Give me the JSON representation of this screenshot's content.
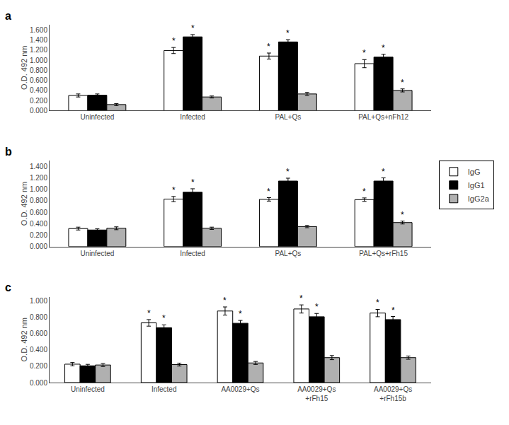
{
  "chart_data": [
    {
      "type": "bar",
      "title": "a",
      "ylabel": "O.D. 492 nm",
      "categories": [
        "Uninfected",
        "Infected",
        "PAL+Qs",
        "PAL+Qs+nFh12"
      ],
      "series": [
        {
          "name": "IgG",
          "color": "white",
          "values": [
            0.3,
            1.19,
            1.08,
            0.93
          ],
          "errors": [
            0.03,
            0.06,
            0.06,
            0.08
          ]
        },
        {
          "name": "IgG1",
          "color": "black",
          "values": [
            0.305,
            1.46,
            1.36,
            1.06
          ],
          "errors": [
            0.025,
            0.045,
            0.045,
            0.055
          ]
        },
        {
          "name": "IgG2a",
          "color": "#b0b0b0",
          "values": [
            0.12,
            0.27,
            0.33,
            0.4
          ],
          "errors": [
            0.02,
            0.02,
            0.03,
            0.03
          ]
        }
      ],
      "annotations": [
        {
          "category": "Infected",
          "series": "IgG",
          "text": "*"
        },
        {
          "category": "PAL+Qs",
          "series": "IgG",
          "text": "*"
        },
        {
          "category": "PAL+Qs+nFh12",
          "series": "IgG",
          "text": "*"
        },
        {
          "category": "Infected",
          "series": "IgG1",
          "text": "*"
        },
        {
          "category": "PAL+Qs",
          "series": "IgG1",
          "text": "*"
        },
        {
          "category": "PAL+Qs+nFh12",
          "series": "IgG1",
          "text": "*"
        },
        {
          "category": "PAL+Qs+nFh12",
          "series": "IgG2a",
          "text": "*"
        }
      ],
      "ylim": [
        0.0,
        1.7
      ],
      "yticks": [
        {
          "value": 0.0,
          "label": "0.000"
        },
        {
          "value": 0.2,
          "label": "0.200"
        },
        {
          "value": 0.4,
          "label": "0.400"
        },
        {
          "value": 0.6,
          "label": "0.600"
        },
        {
          "value": 0.8,
          "label": "0.800"
        },
        {
          "value": 1.0,
          "label": "1.000"
        },
        {
          "value": 1.2,
          "label": "1.200"
        },
        {
          "value": 1.4,
          "label": "1.400"
        },
        {
          "value": 1.6,
          "label": "1.600"
        }
      ],
      "grid": false
    },
    {
      "type": "bar",
      "title": "b",
      "ylabel": "O.D. 492 nm",
      "categories": [
        "Uninfected",
        "Infected",
        "PAL+Qs",
        "PAL+Qs+rFh15"
      ],
      "series": [
        {
          "name": "IgG",
          "color": "white",
          "values": [
            0.315,
            0.83,
            0.825,
            0.82
          ],
          "errors": [
            0.025,
            0.045,
            0.03,
            0.03
          ]
        },
        {
          "name": "IgG1",
          "color": "black",
          "values": [
            0.29,
            0.95,
            1.145,
            1.145
          ],
          "errors": [
            0.02,
            0.06,
            0.05,
            0.055
          ]
        },
        {
          "name": "IgG2a",
          "color": "#b0b0b0",
          "values": [
            0.32,
            0.32,
            0.35,
            0.42
          ],
          "errors": [
            0.025,
            0.02,
            0.02,
            0.025
          ]
        }
      ],
      "annotations": [
        {
          "category": "Infected",
          "series": "IgG",
          "text": "*"
        },
        {
          "category": "PAL+Qs",
          "series": "IgG",
          "text": "*"
        },
        {
          "category": "PAL+Qs+rFh15",
          "series": "IgG",
          "text": "*"
        },
        {
          "category": "Infected",
          "series": "IgG1",
          "text": "*"
        },
        {
          "category": "PAL+Qs",
          "series": "IgG1",
          "text": "*"
        },
        {
          "category": "PAL+Qs+rFh15",
          "series": "IgG1",
          "text": "*"
        },
        {
          "category": "PAL+Qs+rFh15",
          "series": "IgG2a",
          "text": "*"
        }
      ],
      "ylim": [
        0.0,
        1.5
      ],
      "yticks": [
        {
          "value": 0.0,
          "label": "0.000"
        },
        {
          "value": 0.2,
          "label": "0.200"
        },
        {
          "value": 0.4,
          "label": "0.400"
        },
        {
          "value": 0.6,
          "label": "0.600"
        },
        {
          "value": 0.8,
          "label": "0.800"
        },
        {
          "value": 1.0,
          "label": "1.000"
        },
        {
          "value": 1.2,
          "label": "1.200"
        },
        {
          "value": 1.4,
          "label": "1.400"
        }
      ],
      "grid": false,
      "legend": "right"
    },
    {
      "type": "bar",
      "title": "c",
      "ylabel": "O.D. 492 nm",
      "categories": [
        "Uninfected",
        "Infected",
        "AA0029+Qs",
        "AA0029+Qs\n+rFh15",
        "AA0029+Qs\n+rFh15b"
      ],
      "series": [
        {
          "name": "IgG",
          "color": "white",
          "values": [
            0.225,
            0.73,
            0.875,
            0.9,
            0.85
          ],
          "errors": [
            0.02,
            0.04,
            0.05,
            0.05,
            0.045
          ]
        },
        {
          "name": "IgG1",
          "color": "black",
          "values": [
            0.205,
            0.67,
            0.725,
            0.805,
            0.77
          ],
          "errors": [
            0.018,
            0.035,
            0.035,
            0.04,
            0.038
          ]
        },
        {
          "name": "IgG2a",
          "color": "#b0b0b0",
          "values": [
            0.215,
            0.22,
            0.24,
            0.305,
            0.305
          ],
          "errors": [
            0.018,
            0.018,
            0.018,
            0.025,
            0.02
          ]
        }
      ],
      "annotations": [
        {
          "category": "Infected",
          "series": "IgG",
          "text": "*"
        },
        {
          "category": "AA0029+Qs",
          "series": "IgG",
          "text": "*"
        },
        {
          "category": "AA0029+Qs\n+rFh15",
          "series": "IgG",
          "text": "*"
        },
        {
          "category": "AA0029+Qs\n+rFh15b",
          "series": "IgG",
          "text": "*"
        },
        {
          "category": "Infected",
          "series": "IgG1",
          "text": "*"
        },
        {
          "category": "AA0029+Qs",
          "series": "IgG1",
          "text": "*"
        },
        {
          "category": "AA0029+Qs\n+rFh15",
          "series": "IgG1",
          "text": "*"
        },
        {
          "category": "AA0029+Qs\n+rFh15b",
          "series": "IgG1",
          "text": "*"
        }
      ],
      "ylim": [
        0.0,
        1.05
      ],
      "yticks": [
        {
          "value": 0.0,
          "label": "0.000"
        },
        {
          "value": 0.2,
          "label": "0.200"
        },
        {
          "value": 0.4,
          "label": "0.400"
        },
        {
          "value": 0.6,
          "label": "0.600"
        },
        {
          "value": 0.8,
          "label": "0.800"
        },
        {
          "value": 1.0,
          "label": "1.000"
        }
      ],
      "grid": false
    }
  ]
}
